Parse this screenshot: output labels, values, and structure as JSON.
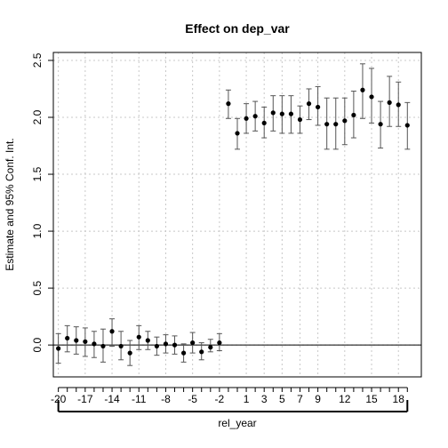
{
  "chart_data": {
    "type": "scatter",
    "title": "Effect on dep_var",
    "xlabel": "rel_year",
    "ylabel": "Estimate and 95% Conf. Int.",
    "x_tick_labels": [
      "-20",
      "-17",
      "-14",
      "-11",
      "-8",
      "-5",
      "-2",
      "1",
      "3",
      "5",
      "7",
      "9",
      "12",
      "15",
      "18"
    ],
    "y_tick_labels": [
      "0.0",
      "0.5",
      "1.0",
      "1.5",
      "2.0",
      "2.5"
    ],
    "ylim": [
      -0.28,
      2.57
    ],
    "grid": true,
    "reference_line_y": 0,
    "series": [
      {
        "points": [
          {
            "x": -20,
            "y": -0.03,
            "lo": -0.16,
            "hi": 0.1
          },
          {
            "x": -19,
            "y": 0.06,
            "lo": -0.06,
            "hi": 0.17
          },
          {
            "x": -18,
            "y": 0.04,
            "lo": -0.08,
            "hi": 0.16
          },
          {
            "x": -17,
            "y": 0.03,
            "lo": -0.1,
            "hi": 0.15
          },
          {
            "x": -16,
            "y": 0.01,
            "lo": -0.11,
            "hi": 0.12
          },
          {
            "x": -15,
            "y": -0.01,
            "lo": -0.15,
            "hi": 0.14
          },
          {
            "x": -14,
            "y": 0.12,
            "lo": -0.01,
            "hi": 0.23
          },
          {
            "x": -13,
            "y": -0.01,
            "lo": -0.13,
            "hi": 0.12
          },
          {
            "x": -12,
            "y": -0.07,
            "lo": -0.18,
            "hi": 0.04
          },
          {
            "x": -11,
            "y": 0.07,
            "lo": -0.04,
            "hi": 0.17
          },
          {
            "x": -10,
            "y": 0.04,
            "lo": -0.04,
            "hi": 0.12
          },
          {
            "x": -9,
            "y": -0.01,
            "lo": -0.09,
            "hi": 0.07
          },
          {
            "x": -8,
            "y": 0.01,
            "lo": -0.07,
            "hi": 0.09
          },
          {
            "x": -7,
            "y": 0.0,
            "lo": -0.08,
            "hi": 0.08
          },
          {
            "x": -6,
            "y": -0.07,
            "lo": -0.15,
            "hi": 0.01
          },
          {
            "x": -5,
            "y": 0.02,
            "lo": -0.07,
            "hi": 0.11
          },
          {
            "x": -4,
            "y": -0.06,
            "lo": -0.13,
            "hi": 0.02
          },
          {
            "x": -3,
            "y": -0.02,
            "lo": -0.06,
            "hi": 0.05
          },
          {
            "x": -2,
            "y": 0.02,
            "lo": -0.05,
            "hi": 0.1
          },
          {
            "x": -1,
            "y": 2.12,
            "lo": 1.99,
            "hi": 2.24
          },
          {
            "x": 0,
            "y": 1.86,
            "lo": 1.72,
            "hi": 1.99
          },
          {
            "x": 1,
            "y": 1.99,
            "lo": 1.86,
            "hi": 2.12
          },
          {
            "x": 2,
            "y": 2.01,
            "lo": 1.88,
            "hi": 2.14
          },
          {
            "x": 3,
            "y": 1.95,
            "lo": 1.82,
            "hi": 2.09
          },
          {
            "x": 4,
            "y": 2.04,
            "lo": 1.88,
            "hi": 2.19
          },
          {
            "x": 5,
            "y": 2.03,
            "lo": 1.86,
            "hi": 2.19
          },
          {
            "x": 6,
            "y": 2.03,
            "lo": 1.86,
            "hi": 2.19
          },
          {
            "x": 7,
            "y": 1.98,
            "lo": 1.86,
            "hi": 2.1
          },
          {
            "x": 8,
            "y": 2.12,
            "lo": 1.98,
            "hi": 2.25
          },
          {
            "x": 9,
            "y": 2.09,
            "lo": 1.93,
            "hi": 2.27
          },
          {
            "x": 10,
            "y": 1.94,
            "lo": 1.72,
            "hi": 2.17
          },
          {
            "x": 11,
            "y": 1.94,
            "lo": 1.72,
            "hi": 2.17
          },
          {
            "x": 12,
            "y": 1.97,
            "lo": 1.76,
            "hi": 2.17
          },
          {
            "x": 13,
            "y": 2.02,
            "lo": 1.82,
            "hi": 2.23
          },
          {
            "x": 14,
            "y": 2.24,
            "lo": 1.99,
            "hi": 2.47
          },
          {
            "x": 15,
            "y": 2.18,
            "lo": 1.95,
            "hi": 2.43
          },
          {
            "x": 16,
            "y": 1.94,
            "lo": 1.73,
            "hi": 2.14
          },
          {
            "x": 17,
            "y": 2.13,
            "lo": 1.92,
            "hi": 2.36
          },
          {
            "x": 18,
            "y": 2.11,
            "lo": 1.92,
            "hi": 2.31
          },
          {
            "x": 19,
            "y": 1.93,
            "lo": 1.72,
            "hi": 2.13
          }
        ]
      }
    ]
  }
}
